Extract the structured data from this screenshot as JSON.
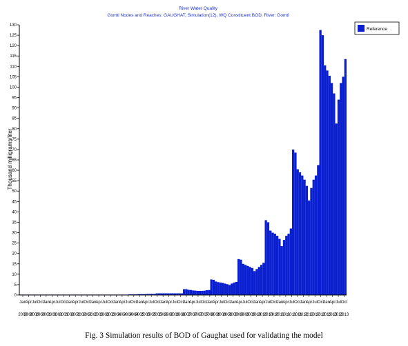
{
  "title_line1": "River Water Quality",
  "title_line2": "Gomti Nodes and Reaches: GAUGHAT, Simulation(12), WQ Constituent:BOD, River: Gomti",
  "ylabel": "Thousand milligrams/liter",
  "caption": "Fig. 3 Simulation results of BOD of Gaughat used for validating the model",
  "colors": {
    "bar": "#0a1fd0",
    "axis": "#000000",
    "title": "#1a2fd0"
  },
  "chart_data": {
    "type": "bar",
    "title": "River Water Quality",
    "ylabel": "Thousand milligrams/liter",
    "ylim": [
      0,
      130
    ],
    "yticks": [
      0,
      5,
      10,
      15,
      20,
      25,
      30,
      35,
      40,
      45,
      50,
      55,
      60,
      65,
      70,
      75,
      80,
      85,
      90,
      95,
      100,
      105,
      110,
      115,
      120,
      125,
      130
    ],
    "x_month_labels": [
      "Jan",
      "Apr",
      "Jul",
      "Oct",
      "Jan",
      "Apr",
      "Jul",
      "Oct",
      "Jan",
      "Apr",
      "Jul",
      "Oct",
      "Jan",
      "Apr",
      "Jul",
      "Oct",
      "Jan",
      "Apr",
      "Jul",
      "Oct",
      "Jan",
      "Apr",
      "Jul",
      "Oct",
      "Jan",
      "Apr",
      "Jul",
      "Oct",
      "Jan",
      "Apr",
      "Jul",
      "Oct",
      "Jan",
      "Apr",
      "Jul",
      "Oct",
      "Jan",
      "Apr",
      "Jul",
      "Oct",
      "Jan",
      "Apr",
      "Jul",
      "Oct",
      "Jan",
      "Apr",
      "Jul",
      "Oct",
      "Jan",
      "Apr",
      "Jul",
      "Oct",
      "Jan",
      "Apr",
      "Jul",
      "Oct"
    ],
    "x_year_labels": [
      "2000",
      "2000",
      "2000",
      "2000",
      "2001",
      "2001",
      "2001",
      "2001",
      "2002",
      "2002",
      "2002",
      "2002",
      "2003",
      "2003",
      "2003",
      "2003",
      "2004",
      "2004",
      "2004",
      "2004",
      "2005",
      "2005",
      "2005",
      "2005",
      "2006",
      "2006",
      "2006",
      "2006",
      "2007",
      "2007",
      "2007",
      "2007",
      "2008",
      "2008",
      "2008",
      "2008",
      "2009",
      "2009",
      "2009",
      "2009",
      "2010",
      "2010",
      "2010",
      "2010",
      "2011",
      "2011",
      "2011",
      "2011",
      "2012",
      "2012",
      "2012",
      "2012",
      "2013",
      "2013",
      "2013",
      "2013"
    ],
    "legend": [
      {
        "label": "Reference"
      }
    ],
    "series": [
      {
        "name": "Reference",
        "values": [
          0.2,
          0.2,
          0.2,
          0.2,
          0.2,
          0.2,
          0.2,
          0.2,
          0.2,
          0.2,
          0.2,
          0.2,
          0.2,
          0.2,
          0.2,
          0.2,
          0.2,
          0.2,
          0.2,
          0.2,
          0.2,
          0.2,
          0.2,
          0.2,
          0.2,
          0.2,
          0.2,
          0.2,
          0.2,
          0.2,
          0.2,
          0.2,
          0.2,
          0.2,
          0.2,
          0.2,
          0.2,
          0.2,
          0.2,
          0.2,
          0.2,
          0.2,
          0.2,
          0.2,
          0.2,
          0.2,
          0.2,
          0.2,
          0.3,
          0.3,
          0.3,
          0.3,
          0.4,
          0.4,
          0.4,
          0.4,
          0.5,
          0.5,
          0.5,
          0.5,
          0.8,
          0.8,
          0.8,
          0.8,
          0.8,
          0.8,
          0.8,
          0.8,
          0.8,
          0.8,
          0.8,
          0.8,
          2.8,
          2.8,
          2.5,
          2.4,
          2.2,
          2.1,
          2.0,
          2.0,
          2.0,
          2.1,
          2.3,
          2.4,
          7.5,
          7.3,
          6.5,
          6.2,
          6.0,
          5.8,
          5.5,
          5.2,
          4.8,
          5.5,
          6.0,
          6.3,
          17.3,
          17.0,
          15.0,
          14.5,
          14.0,
          13.5,
          13.0,
          11.5,
          12.5,
          13.5,
          14.5,
          15.5,
          36.0,
          35.0,
          31.0,
          30.0,
          29.5,
          28.5,
          27.0,
          23.5,
          26.5,
          28.5,
          29.5,
          32.0,
          70.0,
          68.5,
          60.5,
          59.0,
          57.5,
          55.5,
          52.5,
          45.5,
          51.5,
          55.5,
          57.5,
          62.5,
          127.5,
          125.0,
          110.5,
          108.0,
          105.5,
          102.0,
          97.0,
          82.5,
          94.0,
          102.0,
          105.0,
          113.5
        ]
      }
    ]
  }
}
